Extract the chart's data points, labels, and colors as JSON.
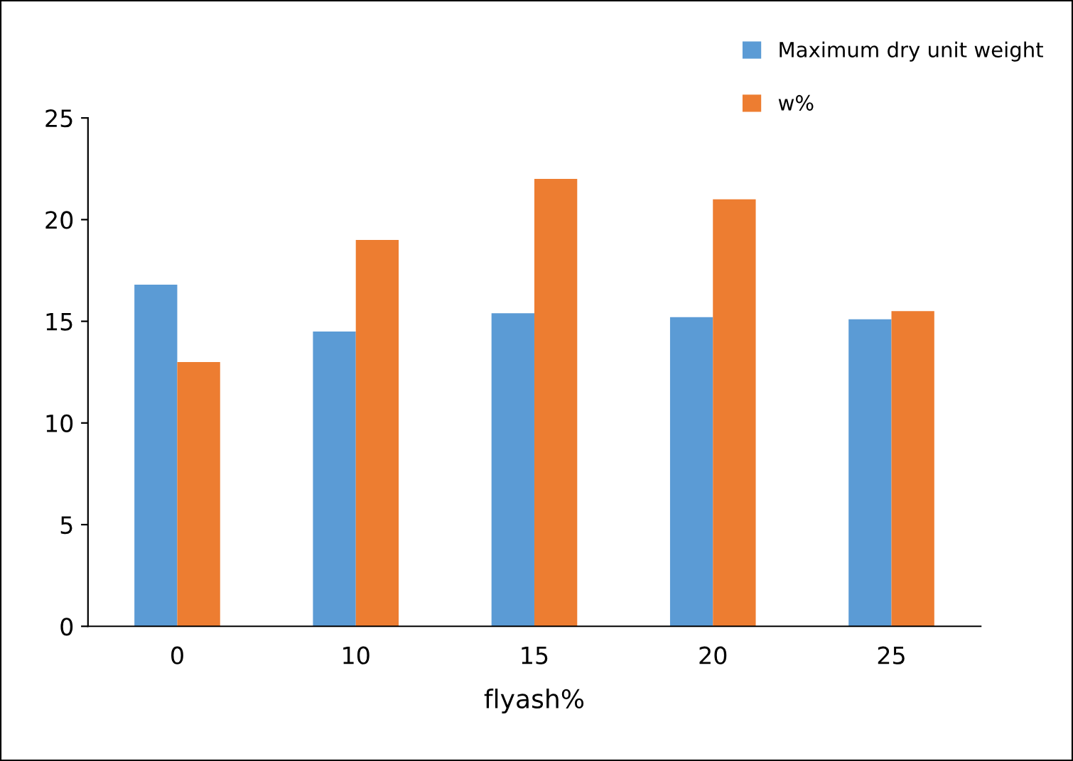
{
  "chart_data": {
    "type": "bar",
    "xlabel": "flyash%",
    "categories": [
      "0",
      "10",
      "15",
      "20",
      "25"
    ],
    "series": [
      {
        "name": "Maximum dry unit weight",
        "color": "#5b9bd5",
        "values": [
          16.8,
          14.5,
          15.4,
          15.2,
          15.1
        ]
      },
      {
        "name": "w%",
        "color": "#ed7d31",
        "values": [
          13,
          19,
          22,
          21,
          15.5
        ]
      }
    ],
    "ylim": [
      0,
      25
    ],
    "yticks": [
      0,
      5,
      10,
      15,
      20,
      25
    ],
    "grid": false,
    "legend": "top right"
  }
}
